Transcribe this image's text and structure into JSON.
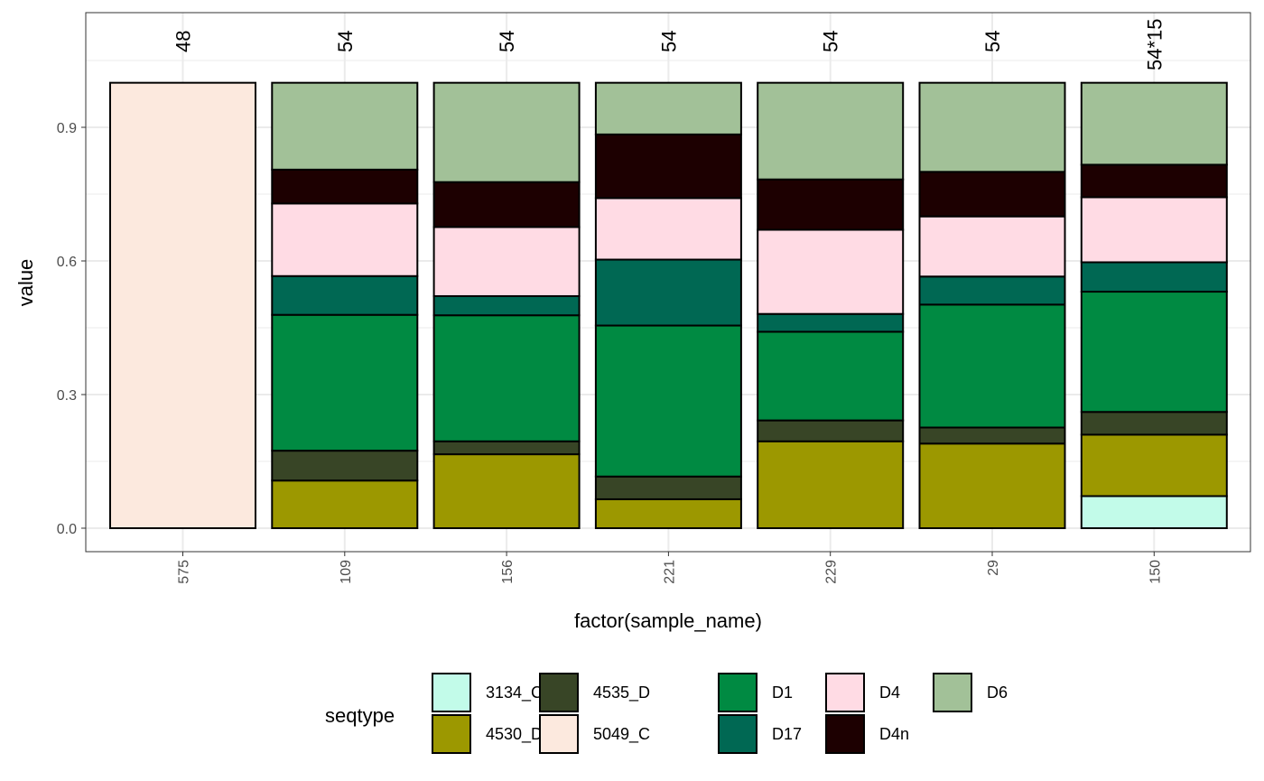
{
  "chart_data": {
    "type": "bar",
    "stacked": true,
    "xlabel": "factor(sample_name)",
    "ylabel": "value",
    "ylim": [
      -0.05,
      1.1
    ],
    "yticks": [
      0.0,
      0.3,
      0.6,
      0.9
    ],
    "ytick_labels": [
      "0.0",
      "0.3",
      "0.6",
      "0.9"
    ],
    "grid": true,
    "categories": [
      "575",
      "109",
      "156",
      "221",
      "229",
      "29",
      "150"
    ],
    "top_labels": [
      "48",
      "54",
      "54",
      "54",
      "54",
      "54",
      "54*15"
    ],
    "legend": {
      "title": "seqtype",
      "position": "bottom"
    },
    "series": [
      {
        "name": "3134_C",
        "color": "#C2FBE9",
        "values": [
          0,
          0,
          0,
          0,
          0,
          0,
          0.072
        ]
      },
      {
        "name": "4530_D",
        "color": "#9C9800",
        "values": [
          0,
          0.107,
          0.166,
          0.065,
          0.195,
          0.19,
          0.138
        ]
      },
      {
        "name": "4535_D",
        "color": "#384526",
        "values": [
          0,
          0.067,
          0.029,
          0.051,
          0.047,
          0.036,
          0.051
        ]
      },
      {
        "name": "5049_C",
        "color": "#FCE9DE",
        "values": [
          1.0,
          0,
          0,
          0,
          0,
          0,
          0
        ]
      },
      {
        "name": "D1",
        "color": "#008A42",
        "values": [
          0,
          0.305,
          0.283,
          0.339,
          0.199,
          0.276,
          0.27
        ]
      },
      {
        "name": "D17",
        "color": "#006853",
        "values": [
          0,
          0.087,
          0.043,
          0.148,
          0.04,
          0.063,
          0.066
        ]
      },
      {
        "name": "D4",
        "color": "#FFDBE4",
        "values": [
          0,
          0.163,
          0.155,
          0.138,
          0.189,
          0.135,
          0.146
        ]
      },
      {
        "name": "D4n",
        "color": "#1D0001",
        "values": [
          0,
          0.076,
          0.101,
          0.143,
          0.113,
          0.1,
          0.073
        ]
      },
      {
        "name": "D6",
        "color": "#A2C198",
        "values": [
          0,
          0.195,
          0.223,
          0.116,
          0.217,
          0.2,
          0.184
        ]
      }
    ]
  }
}
